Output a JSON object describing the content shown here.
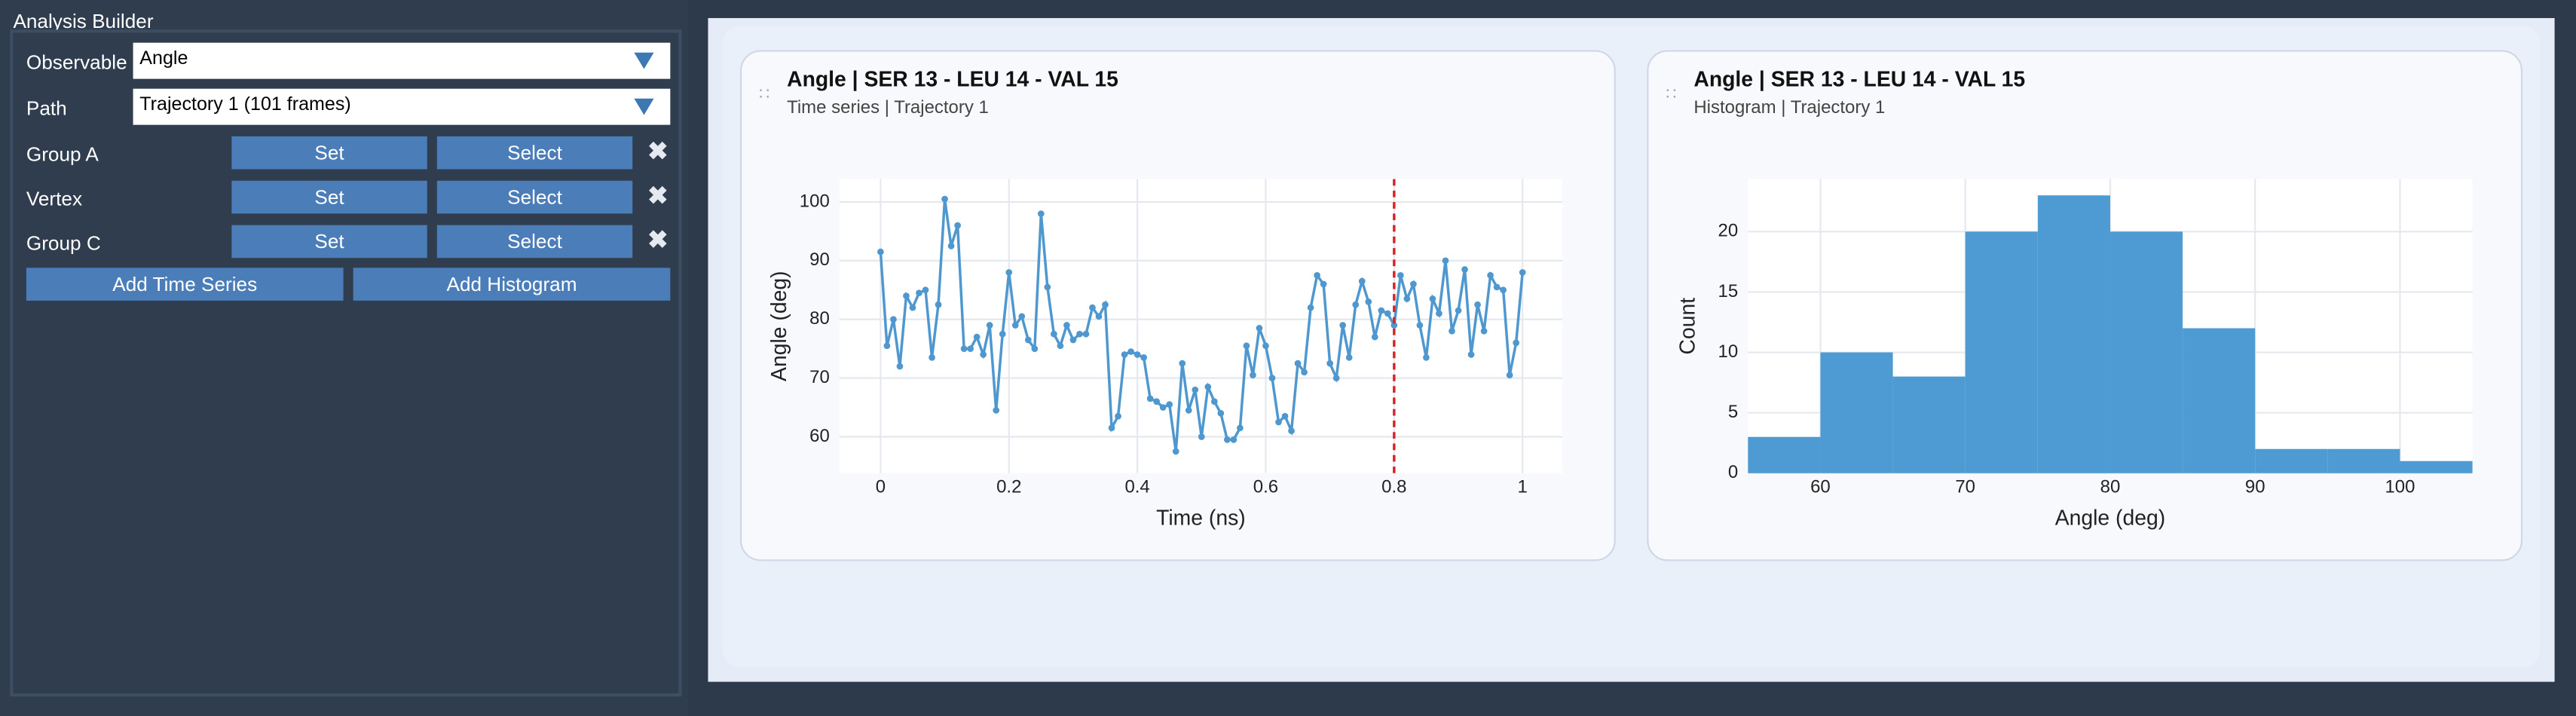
{
  "panel": {
    "title": "Analysis Builder",
    "observable": {
      "label": "Observable",
      "value": "Angle"
    },
    "path": {
      "label": "Path",
      "value": "Trajectory 1 (101 frames)"
    },
    "rows": [
      {
        "label": "Group A",
        "set": "Set",
        "select": "Select"
      },
      {
        "label": "Vertex",
        "set": "Set",
        "select": "Select"
      },
      {
        "label": "Group C",
        "set": "Set",
        "select": "Select"
      }
    ],
    "add_time_series": "Add Time Series",
    "add_histogram": "Add Histogram"
  },
  "chart_data": [
    {
      "type": "line",
      "title": "Angle | SER 13 - LEU 14 - VAL 15",
      "subtitle": "Time series | Trajectory 1",
      "xlabel": "Time (ns)",
      "ylabel": "Angle (deg)",
      "color": "#4f98cf",
      "x": [
        0,
        0.01,
        0.02,
        0.03,
        0.04,
        0.05,
        0.06,
        0.07,
        0.08,
        0.09,
        0.1,
        0.11,
        0.12,
        0.13,
        0.14,
        0.15,
        0.16,
        0.17,
        0.18,
        0.19,
        0.2,
        0.21,
        0.22,
        0.23,
        0.24,
        0.25,
        0.26,
        0.27,
        0.28,
        0.29,
        0.3,
        0.31,
        0.32,
        0.33,
        0.34,
        0.35,
        0.36,
        0.37,
        0.38,
        0.39,
        0.4,
        0.41,
        0.42,
        0.43,
        0.44,
        0.45,
        0.46,
        0.47,
        0.48,
        0.49,
        0.5,
        0.51,
        0.52,
        0.53,
        0.54,
        0.55,
        0.56,
        0.57,
        0.58,
        0.59,
        0.6,
        0.61,
        0.62,
        0.63,
        0.64,
        0.65,
        0.66,
        0.67,
        0.68,
        0.69,
        0.7,
        0.71,
        0.72,
        0.73,
        0.74,
        0.75,
        0.76,
        0.77,
        0.78,
        0.79,
        0.8,
        0.81,
        0.82,
        0.83,
        0.84,
        0.85,
        0.86,
        0.87,
        0.88,
        0.89,
        0.9,
        0.91,
        0.92,
        0.93,
        0.94,
        0.95,
        0.96,
        0.97,
        0.98,
        0.99,
        1
      ],
      "values": [
        91.5,
        75.5,
        80,
        72,
        84,
        82,
        84.5,
        85,
        73.5,
        82.5,
        100.5,
        92.5,
        96,
        75,
        75,
        77,
        74,
        79,
        64.5,
        77.5,
        88,
        79,
        80.5,
        76.5,
        75,
        98,
        85.5,
        77.5,
        75.5,
        79,
        76.5,
        77.5,
        77.5,
        82,
        80.5,
        82.5,
        61.5,
        63.5,
        74,
        74.5,
        74,
        73.5,
        66.5,
        66,
        65,
        65.5,
        57.5,
        72.5,
        64.5,
        68,
        60,
        68.5,
        66,
        64,
        59.5,
        59.5,
        61.5,
        75.5,
        70.5,
        78.5,
        75.5,
        70,
        62.5,
        63.5,
        61,
        72.5,
        71,
        82,
        87.5,
        86,
        72.5,
        70,
        79,
        73.5,
        82.5,
        86.5,
        83,
        77,
        81.5,
        81,
        79,
        87.5,
        83.5,
        86,
        79,
        73.5,
        83.5,
        81,
        90,
        78,
        81.5,
        88.5,
        74,
        82.5,
        78,
        87.5,
        85.5,
        85,
        70.5,
        76,
        88
      ],
      "xlim": [
        -0.064,
        1.062
      ],
      "ylim": [
        53.8,
        103.9
      ],
      "xticks": [
        0,
        0.2,
        0.4,
        0.6,
        0.8,
        1
      ],
      "yticks": [
        60,
        70,
        80,
        90,
        100
      ],
      "grid": true,
      "vline": {
        "value": 0.8,
        "color": "#d62728"
      }
    },
    {
      "type": "histogram",
      "title": "Angle | SER 13 - LEU 14 - VAL 15",
      "subtitle": "Histogram | Trajectory 1",
      "xlabel": "Angle (deg)",
      "ylabel": "Count",
      "color": "#4e9bd4",
      "bins": [
        55,
        60,
        65,
        70,
        75,
        80,
        85,
        90,
        95,
        100,
        105
      ],
      "values": [
        3,
        10,
        8,
        20,
        23,
        20,
        12,
        2,
        2,
        1
      ],
      "xlim": [
        55,
        105
      ],
      "ylim": [
        0,
        24.35
      ],
      "xticks": [
        60,
        70,
        80,
        90,
        100
      ],
      "yticks": [
        0,
        5,
        10,
        15,
        20
      ],
      "grid": true
    }
  ]
}
